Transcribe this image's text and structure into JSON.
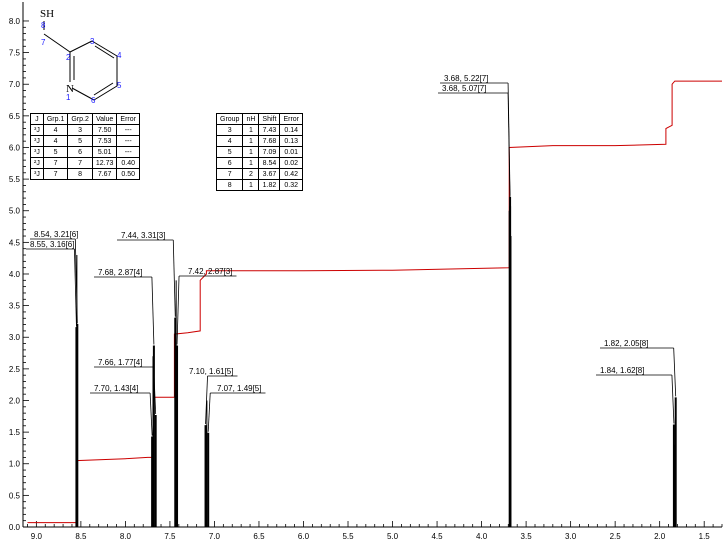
{
  "chart_data": {
    "type": "line",
    "title": "",
    "xlabel": "",
    "ylabel": "",
    "xlim": [
      9.15,
      1.3
    ],
    "ylim": [
      0,
      8.3
    ],
    "x_ticks": [
      "9.0",
      "8.5",
      "8.0",
      "7.5",
      "7.0",
      "6.5",
      "6.0",
      "5.5",
      "5.0",
      "4.5",
      "4.0",
      "3.5",
      "3.0",
      "2.5",
      "2.0",
      "1.5"
    ],
    "y_ticks": [
      "0.0",
      "0.5",
      "1.0",
      "1.5",
      "2.0",
      "2.5",
      "3.0",
      "3.5",
      "4.0",
      "4.5",
      "5.0",
      "5.5",
      "6.0",
      "6.5",
      "7.0",
      "7.5",
      "8.0"
    ],
    "peaks": [
      {
        "x": 8.54,
        "y": 3.21,
        "label": "8.54, 3.21[6]"
      },
      {
        "x": 8.55,
        "y": 3.16,
        "label": "8.55, 3.16[6]"
      },
      {
        "x": 7.68,
        "y": 2.87,
        "label": "7.68, 2.87[4]"
      },
      {
        "x": 7.66,
        "y": 1.77,
        "label": "7.66, 1.77[4]"
      },
      {
        "x": 7.7,
        "y": 1.43,
        "label": "7.70, 1.43[4]"
      },
      {
        "x": 7.44,
        "y": 3.31,
        "label": "7.44, 3.31[3]"
      },
      {
        "x": 7.42,
        "y": 2.87,
        "label": "7.42, 2.87[3]"
      },
      {
        "x": 7.1,
        "y": 1.61,
        "label": "7.10, 1.61[5]"
      },
      {
        "x": 7.07,
        "y": 1.49,
        "label": "7.07, 1.49[5]"
      },
      {
        "x": 3.68,
        "y": 5.22,
        "label": "3.68, 5.22[7]"
      },
      {
        "x": 3.68,
        "y": 5.07,
        "label": "3.68, 5.07[7]"
      },
      {
        "x": 1.82,
        "y": 2.05,
        "label": "1.82, 2.05[8]"
      },
      {
        "x": 1.84,
        "y": 1.62,
        "label": "1.84, 1.62[8]"
      }
    ],
    "integral": [
      [
        9.1,
        0.07
      ],
      [
        8.55,
        0.07
      ],
      [
        8.55,
        1.05
      ],
      [
        8.0,
        1.08
      ],
      [
        7.75,
        1.1
      ],
      [
        7.69,
        1.1
      ],
      [
        7.69,
        2.05
      ],
      [
        7.45,
        2.05
      ],
      [
        7.45,
        3.05
      ],
      [
        7.3,
        3.07
      ],
      [
        7.16,
        3.1
      ],
      [
        7.16,
        3.9
      ],
      [
        7.09,
        4.0
      ],
      [
        7.09,
        4.05
      ],
      [
        6.0,
        4.05
      ],
      [
        5.0,
        4.06
      ],
      [
        3.69,
        4.1
      ],
      [
        3.69,
        6.0
      ],
      [
        3.2,
        6.03
      ],
      [
        2.5,
        6.03
      ],
      [
        1.93,
        6.05
      ],
      [
        1.93,
        6.3
      ],
      [
        1.86,
        6.35
      ],
      [
        1.86,
        7.0
      ],
      [
        1.83,
        7.05
      ],
      [
        1.3,
        7.05
      ]
    ]
  },
  "molecule": {
    "substituent": "SH",
    "atom_numbers": [
      "8",
      "7",
      "2",
      "3",
      "4",
      "5",
      "6",
      "1"
    ],
    "nitrogen": "N"
  },
  "coupling_table": {
    "headers": [
      "J",
      "Grp.1",
      "Grp.2",
      "Value",
      "Error"
    ],
    "rows": [
      [
        "³J",
        "4",
        "3",
        "7.50",
        "---"
      ],
      [
        "³J",
        "4",
        "5",
        "7.53",
        "---"
      ],
      [
        "³J",
        "5",
        "6",
        "5.01",
        "---"
      ],
      [
        "²J",
        "7",
        "7",
        "12.73",
        "0.40"
      ],
      [
        "³J",
        "7",
        "8",
        "7.67",
        "0.50"
      ]
    ]
  },
  "shift_table": {
    "headers": [
      "Group",
      "nH",
      "Shift",
      "Error"
    ],
    "rows": [
      [
        "3",
        "1",
        "7.43",
        "0.14"
      ],
      [
        "4",
        "1",
        "7.68",
        "0.13"
      ],
      [
        "5",
        "1",
        "7.09",
        "0.01"
      ],
      [
        "6",
        "1",
        "8.54",
        "0.02"
      ],
      [
        "7",
        "2",
        "3.67",
        "0.42"
      ],
      [
        "8",
        "1",
        "1.82",
        "0.32"
      ]
    ]
  },
  "colors": {
    "spectrum": "#000000",
    "integral": "#cc0000",
    "molecule_numbers": "#1a1aff"
  }
}
